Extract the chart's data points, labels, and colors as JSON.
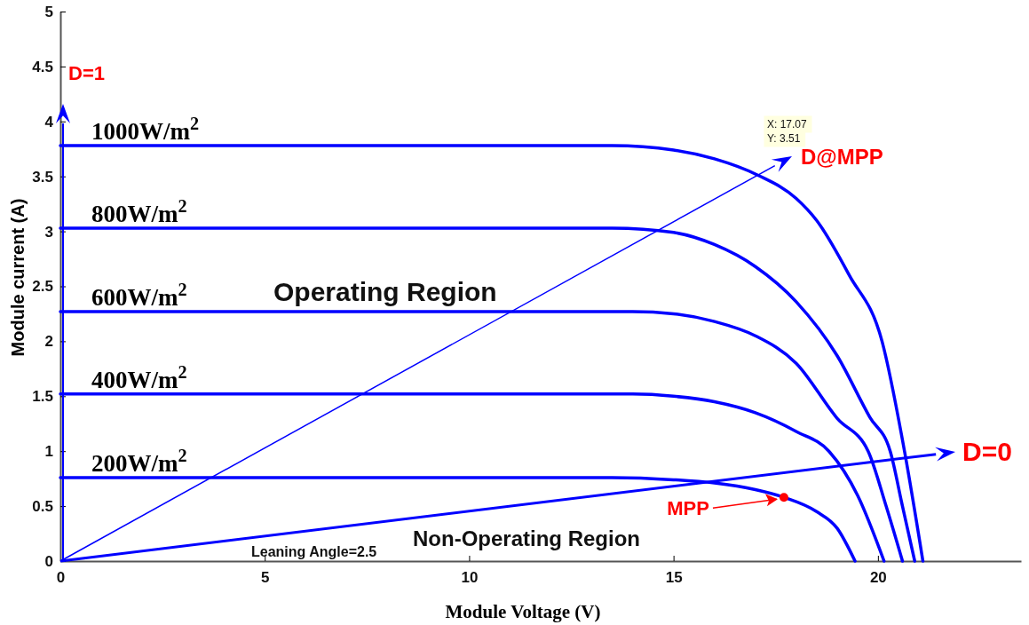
{
  "chart_data": {
    "type": "line",
    "xlabel": "Module Voltage (V)",
    "ylabel": "Module current (A)",
    "xlim": [
      0,
      23.5
    ],
    "xticks": [
      0,
      5,
      10,
      15,
      20
    ],
    "ylim": [
      0,
      5
    ],
    "yticks": [
      0,
      0.5,
      1,
      1.5,
      2,
      2.5,
      3,
      3.5,
      4,
      4.5,
      5
    ],
    "grid": false,
    "series": [
      {
        "name": "1000W/m$^{2}$",
        "color": "#0000ff",
        "x": [
          0,
          13.5,
          15,
          16,
          17.07,
          18,
          18.5,
          19.3,
          20.1,
          20.65,
          21.1
        ],
        "values": [
          3.78,
          3.78,
          3.74,
          3.66,
          3.51,
          3.3,
          3.1,
          2.6,
          2.0,
          1.0,
          0
        ]
      },
      {
        "name": "800W/m$^{2}$",
        "color": "#0000ff",
        "x": [
          0,
          13.5,
          15,
          16,
          17,
          18,
          19,
          19.8,
          20.3,
          20.6,
          20.9
        ],
        "values": [
          3.03,
          3.03,
          2.99,
          2.88,
          2.68,
          2.36,
          1.87,
          1.31,
          1.0,
          0.5,
          0
        ]
      },
      {
        "name": "600W/m$^{2}$",
        "color": "#0000ff",
        "x": [
          0,
          14,
          15,
          16,
          17,
          18,
          19,
          19.76,
          20.2,
          20.6
        ],
        "values": [
          2.27,
          2.27,
          2.25,
          2.18,
          2.05,
          1.8,
          1.3,
          1.0,
          0.5,
          0
        ]
      },
      {
        "name": "400W/m$^{2}$",
        "color": "#0000ff",
        "x": [
          0,
          14,
          15,
          16,
          17,
          18,
          18.8,
          19.5,
          20.15
        ],
        "values": [
          1.52,
          1.52,
          1.5,
          1.45,
          1.35,
          1.18,
          1.0,
          0.6,
          0
        ]
      },
      {
        "name": "200W/m$^{2}$",
        "color": "#0000ff",
        "x": [
          0,
          13.5,
          15,
          16,
          17,
          17.7,
          18.5,
          19,
          19.44
        ],
        "values": [
          0.76,
          0.76,
          0.74,
          0.71,
          0.65,
          0.58,
          0.45,
          0.3,
          0
        ]
      },
      {
        "name": "MPP",
        "type": "scatter",
        "color": "#ff0000",
        "x": [
          17.7
        ],
        "values": [
          0.58
        ]
      }
    ],
    "annotations": [
      "Operating Region",
      "Non-Operating Region",
      "Leaning Angle=2.5",
      "X: 17.07",
      "Y: 3.51",
      "D=1",
      "D@MPP",
      "D=0"
    ]
  }
}
